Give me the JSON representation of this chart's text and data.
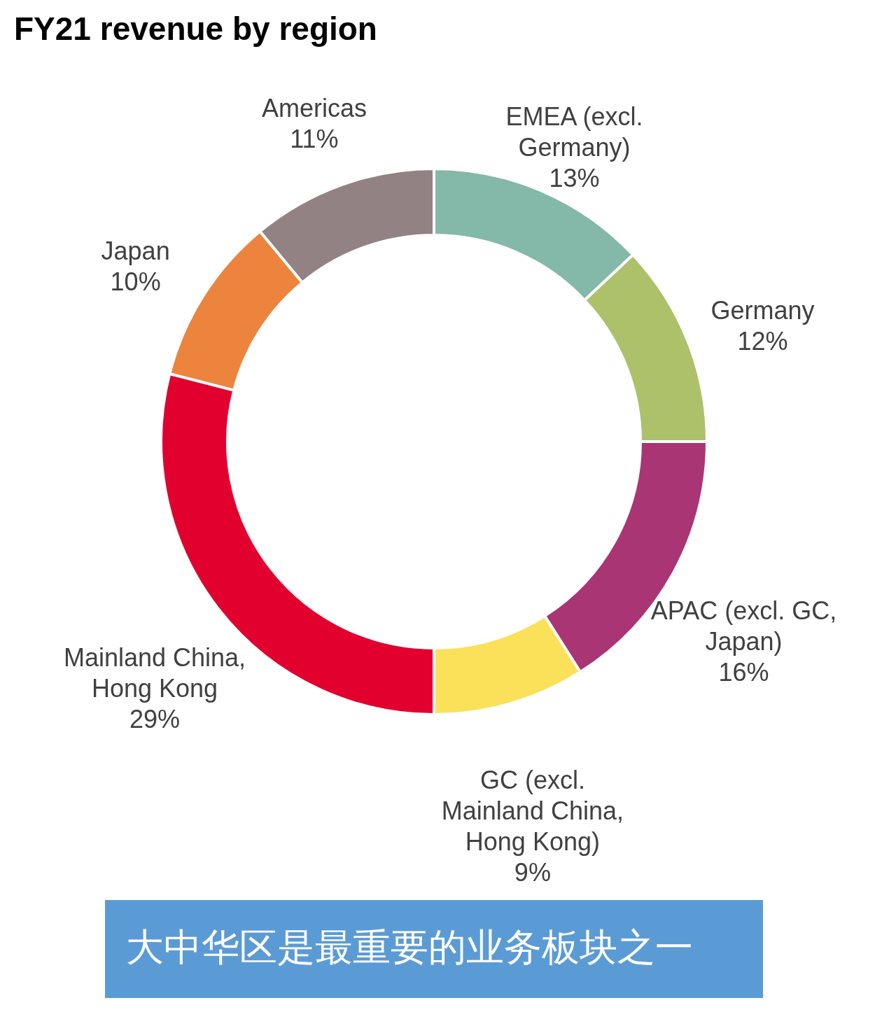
{
  "chart_data": {
    "type": "donut",
    "title": "FY21 revenue by region",
    "categories": [
      "EMEA (excl. Germany)",
      "Germany",
      "APAC (excl. GC, Japan)",
      "GC (excl. Mainland China, Hong Kong)",
      "Mainland China, Hong Kong",
      "Japan",
      "Americas"
    ],
    "values": [
      13,
      12,
      16,
      9,
      29,
      10,
      11
    ],
    "value_labels": [
      "13%",
      "12%",
      "16%",
      "9%",
      "29%",
      "10%",
      "11%"
    ],
    "colors": [
      "#84b8a8",
      "#adc16a",
      "#a93574",
      "#fbe05a",
      "#e2002f",
      "#ec843e",
      "#928283"
    ],
    "legend": false,
    "annotations": [
      "大中华区是最重要的业务板块之一"
    ]
  }
}
